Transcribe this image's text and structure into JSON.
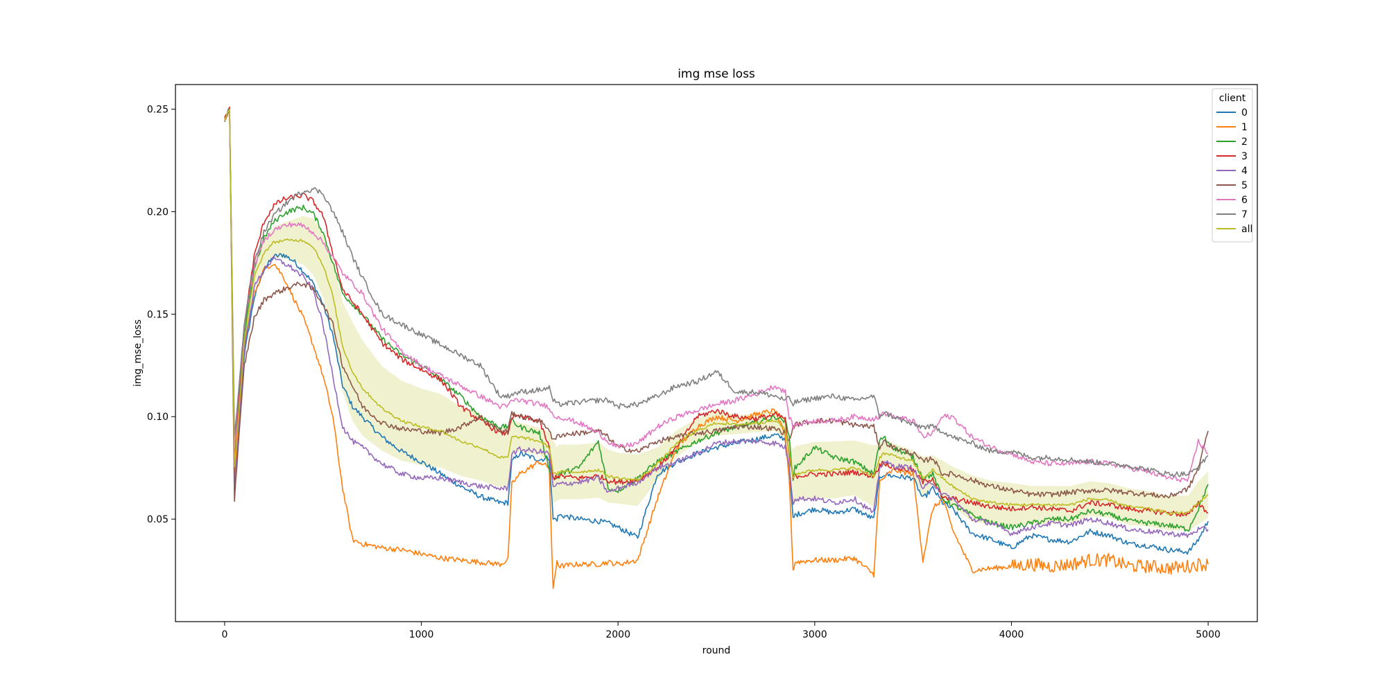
{
  "chart_data": {
    "type": "line",
    "title": "img mse loss",
    "xlabel": "round",
    "ylabel": "img_mse_loss",
    "xlim": [
      -250,
      5250
    ],
    "ylim": [
      0.0,
      0.262
    ],
    "xticks": [
      0,
      1000,
      2000,
      3000,
      4000,
      5000
    ],
    "yticks": [
      0.05,
      0.1,
      0.15,
      0.2,
      0.25
    ],
    "ytick_labels": [
      "0.05",
      "0.10",
      "0.15",
      "0.20",
      "0.25"
    ],
    "grid": false,
    "legend": {
      "title": "client",
      "placement": "top-right"
    },
    "x": [
      0,
      25,
      50,
      100,
      150,
      200,
      250,
      300,
      350,
      400,
      450,
      500,
      550,
      600,
      650,
      700,
      800,
      900,
      1000,
      1100,
      1200,
      1300,
      1400,
      1440,
      1460,
      1500,
      1600,
      1650,
      1670,
      1690,
      1700,
      1800,
      1900,
      1950,
      2000,
      2100,
      2200,
      2300,
      2400,
      2500,
      2600,
      2700,
      2800,
      2850,
      2870,
      2890,
      2900,
      3000,
      3100,
      3200,
      3300,
      3330,
      3350,
      3400,
      3500,
      3550,
      3600,
      3650,
      3700,
      3800,
      3900,
      4000,
      4100,
      4200,
      4300,
      4400,
      4500,
      4600,
      4700,
      4800,
      4900,
      4950,
      5000
    ],
    "series": [
      {
        "name": "0",
        "color": "#1f77b4",
        "values": [
          0.245,
          0.25,
          0.075,
          0.13,
          0.158,
          0.172,
          0.178,
          0.179,
          0.176,
          0.171,
          0.165,
          0.155,
          0.14,
          0.115,
          0.105,
          0.1,
          0.09,
          0.083,
          0.078,
          0.072,
          0.066,
          0.061,
          0.058,
          0.058,
          0.078,
          0.082,
          0.079,
          0.08,
          0.05,
          0.05,
          0.052,
          0.05,
          0.049,
          0.048,
          0.046,
          0.041,
          0.072,
          0.078,
          0.082,
          0.085,
          0.087,
          0.089,
          0.091,
          0.089,
          0.075,
          0.05,
          0.052,
          0.055,
          0.053,
          0.055,
          0.05,
          0.07,
          0.072,
          0.071,
          0.07,
          0.06,
          0.065,
          0.058,
          0.055,
          0.043,
          0.04,
          0.036,
          0.042,
          0.04,
          0.039,
          0.044,
          0.042,
          0.038,
          0.037,
          0.035,
          0.034,
          0.04,
          0.049
        ]
      },
      {
        "name": "1",
        "color": "#ff7f0e",
        "values": [
          0.245,
          0.25,
          0.07,
          0.135,
          0.16,
          0.172,
          0.175,
          0.168,
          0.158,
          0.148,
          0.135,
          0.12,
          0.1,
          0.065,
          0.04,
          0.038,
          0.036,
          0.035,
          0.033,
          0.031,
          0.03,
          0.029,
          0.028,
          0.03,
          0.067,
          0.072,
          0.078,
          0.075,
          0.015,
          0.03,
          0.027,
          0.028,
          0.028,
          0.029,
          0.028,
          0.03,
          0.06,
          0.085,
          0.095,
          0.1,
          0.098,
          0.101,
          0.103,
          0.09,
          0.07,
          0.025,
          0.029,
          0.03,
          0.03,
          0.031,
          0.023,
          0.068,
          0.07,
          0.074,
          0.072,
          0.03,
          0.055,
          0.06,
          0.045,
          0.025,
          0.026,
          0.027,
          0.028,
          0.027,
          0.028,
          0.03,
          0.03,
          0.027,
          0.027,
          0.026,
          0.027,
          0.028,
          0.028
        ]
      },
      {
        "name": "2",
        "color": "#2ca02c",
        "values": [
          0.245,
          0.25,
          0.08,
          0.14,
          0.172,
          0.187,
          0.195,
          0.199,
          0.201,
          0.202,
          0.199,
          0.19,
          0.175,
          0.16,
          0.155,
          0.15,
          0.138,
          0.13,
          0.125,
          0.118,
          0.11,
          0.1,
          0.095,
          0.095,
          0.098,
          0.095,
          0.092,
          0.075,
          0.07,
          0.07,
          0.072,
          0.075,
          0.088,
          0.065,
          0.064,
          0.07,
          0.078,
          0.083,
          0.088,
          0.092,
          0.095,
          0.097,
          0.1,
          0.098,
          0.09,
          0.07,
          0.075,
          0.085,
          0.08,
          0.078,
          0.072,
          0.088,
          0.09,
          0.085,
          0.08,
          0.07,
          0.072,
          0.06,
          0.057,
          0.052,
          0.048,
          0.046,
          0.048,
          0.05,
          0.05,
          0.054,
          0.052,
          0.049,
          0.048,
          0.047,
          0.045,
          0.055,
          0.067
        ]
      },
      {
        "name": "3",
        "color": "#d62728",
        "values": [
          0.245,
          0.25,
          0.08,
          0.145,
          0.178,
          0.195,
          0.203,
          0.206,
          0.207,
          0.208,
          0.205,
          0.198,
          0.18,
          0.162,
          0.156,
          0.15,
          0.136,
          0.128,
          0.123,
          0.118,
          0.105,
          0.098,
          0.092,
          0.092,
          0.1,
          0.1,
          0.098,
          0.085,
          0.07,
          0.071,
          0.071,
          0.07,
          0.071,
          0.069,
          0.068,
          0.069,
          0.075,
          0.085,
          0.1,
          0.103,
          0.1,
          0.099,
          0.101,
          0.099,
          0.08,
          0.07,
          0.071,
          0.072,
          0.072,
          0.073,
          0.071,
          0.076,
          0.078,
          0.075,
          0.074,
          0.068,
          0.07,
          0.06,
          0.06,
          0.058,
          0.056,
          0.055,
          0.056,
          0.055,
          0.054,
          0.058,
          0.057,
          0.055,
          0.054,
          0.053,
          0.052,
          0.058,
          0.053
        ]
      },
      {
        "name": "4",
        "color": "#9467bd",
        "values": [
          0.245,
          0.25,
          0.065,
          0.132,
          0.163,
          0.172,
          0.177,
          0.175,
          0.172,
          0.168,
          0.162,
          0.145,
          0.12,
          0.095,
          0.088,
          0.085,
          0.077,
          0.072,
          0.07,
          0.07,
          0.068,
          0.066,
          0.065,
          0.065,
          0.082,
          0.084,
          0.083,
          0.082,
          0.065,
          0.067,
          0.067,
          0.068,
          0.07,
          0.063,
          0.065,
          0.068,
          0.075,
          0.078,
          0.082,
          0.087,
          0.088,
          0.088,
          0.087,
          0.085,
          0.076,
          0.058,
          0.06,
          0.06,
          0.058,
          0.06,
          0.053,
          0.075,
          0.078,
          0.076,
          0.075,
          0.065,
          0.068,
          0.062,
          0.06,
          0.05,
          0.048,
          0.043,
          0.046,
          0.048,
          0.047,
          0.05,
          0.048,
          0.045,
          0.044,
          0.043,
          0.042,
          0.045,
          0.045
        ]
      },
      {
        "name": "5",
        "color": "#8c564b",
        "values": [
          0.245,
          0.25,
          0.06,
          0.125,
          0.148,
          0.157,
          0.16,
          0.162,
          0.164,
          0.165,
          0.162,
          0.155,
          0.145,
          0.125,
          0.115,
          0.105,
          0.097,
          0.094,
          0.093,
          0.092,
          0.095,
          0.1,
          0.093,
          0.093,
          0.102,
          0.1,
          0.098,
          0.094,
          0.088,
          0.09,
          0.091,
          0.092,
          0.093,
          0.09,
          0.085,
          0.083,
          0.088,
          0.09,
          0.092,
          0.093,
          0.095,
          0.095,
          0.094,
          0.092,
          0.088,
          0.095,
          0.096,
          0.098,
          0.098,
          0.096,
          0.095,
          0.085,
          0.088,
          0.085,
          0.082,
          0.078,
          0.08,
          0.072,
          0.072,
          0.069,
          0.066,
          0.064,
          0.062,
          0.062,
          0.063,
          0.064,
          0.064,
          0.063,
          0.062,
          0.061,
          0.065,
          0.075,
          0.093
        ]
      },
      {
        "name": "6",
        "color": "#e377c2",
        "values": [
          0.245,
          0.25,
          0.085,
          0.145,
          0.173,
          0.186,
          0.191,
          0.193,
          0.194,
          0.193,
          0.19,
          0.185,
          0.178,
          0.17,
          0.165,
          0.16,
          0.143,
          0.132,
          0.125,
          0.12,
          0.115,
          0.11,
          0.105,
          0.105,
          0.108,
          0.108,
          0.106,
          0.105,
          0.1,
          0.1,
          0.1,
          0.097,
          0.092,
          0.088,
          0.085,
          0.087,
          0.095,
          0.1,
          0.103,
          0.106,
          0.108,
          0.111,
          0.115,
          0.112,
          0.1,
          0.095,
          0.096,
          0.098,
          0.098,
          0.1,
          0.099,
          0.1,
          0.102,
          0.1,
          0.098,
          0.09,
          0.092,
          0.1,
          0.1,
          0.09,
          0.085,
          0.082,
          0.078,
          0.077,
          0.077,
          0.078,
          0.077,
          0.075,
          0.073,
          0.07,
          0.069,
          0.088,
          0.082
        ]
      },
      {
        "name": "7",
        "color": "#7f7f7f",
        "values": [
          0.245,
          0.25,
          0.09,
          0.145,
          0.175,
          0.19,
          0.198,
          0.203,
          0.207,
          0.21,
          0.211,
          0.209,
          0.2,
          0.19,
          0.178,
          0.168,
          0.15,
          0.145,
          0.14,
          0.135,
          0.13,
          0.125,
          0.11,
          0.11,
          0.111,
          0.112,
          0.113,
          0.114,
          0.108,
          0.106,
          0.106,
          0.107,
          0.108,
          0.108,
          0.105,
          0.106,
          0.11,
          0.115,
          0.117,
          0.122,
          0.112,
          0.112,
          0.11,
          0.108,
          0.109,
          0.106,
          0.107,
          0.109,
          0.11,
          0.108,
          0.11,
          0.1,
          0.102,
          0.1,
          0.096,
          0.095,
          0.095,
          0.093,
          0.09,
          0.087,
          0.083,
          0.083,
          0.08,
          0.08,
          0.079,
          0.078,
          0.077,
          0.076,
          0.074,
          0.072,
          0.072,
          0.075,
          0.081
        ]
      },
      {
        "name": "all",
        "color": "#bcbd22",
        "values": [
          0.245,
          0.25,
          0.075,
          0.137,
          0.168,
          0.18,
          0.185,
          0.186,
          0.186,
          0.186,
          0.183,
          0.174,
          0.159,
          0.134,
          0.122,
          0.114,
          0.104,
          0.098,
          0.095,
          0.093,
          0.088,
          0.085,
          0.08,
          0.08,
          0.09,
          0.09,
          0.088,
          0.085,
          0.073,
          0.072,
          0.073,
          0.073,
          0.074,
          0.071,
          0.07,
          0.069,
          0.077,
          0.087,
          0.093,
          0.097,
          0.096,
          0.097,
          0.098,
          0.094,
          0.083,
          0.07,
          0.072,
          0.074,
          0.074,
          0.075,
          0.071,
          0.08,
          0.082,
          0.081,
          0.078,
          0.07,
          0.074,
          0.07,
          0.066,
          0.06,
          0.058,
          0.057,
          0.057,
          0.057,
          0.057,
          0.06,
          0.059,
          0.056,
          0.055,
          0.053,
          0.053,
          0.058,
          0.062
        ]
      }
    ]
  }
}
